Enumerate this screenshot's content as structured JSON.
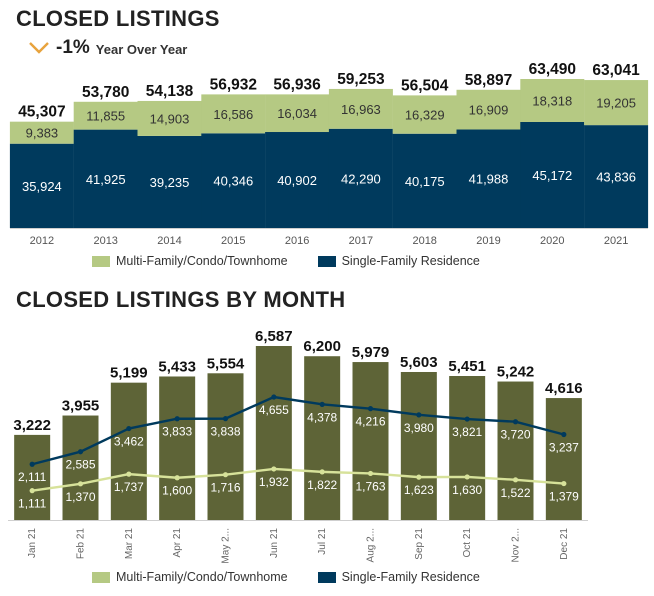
{
  "colors": {
    "multi": "#b5c983",
    "single": "#003a5d",
    "month_bar": "#5e6437",
    "arrow": "#e8a33d",
    "multi_line": "#d7e29a"
  },
  "header": {
    "title": "CLOSED LISTINGS",
    "yoy_icon": "chevron-down-icon",
    "yoy_value": "-1%",
    "yoy_label": "Year Over Year"
  },
  "monthly": {
    "title": "CLOSED LISTINGS BY MONTH"
  },
  "legend": {
    "multi": "Multi-Family/Condo/Townhome",
    "single": "Single-Family Residence"
  },
  "chart_data": [
    {
      "type": "bar",
      "stacked": true,
      "categories": [
        "2012",
        "2013",
        "2014",
        "2015",
        "2016",
        "2017",
        "2018",
        "2019",
        "2020",
        "2021"
      ],
      "series": [
        {
          "name": "Single-Family Residence",
          "values": [
            35924,
            41925,
            39235,
            40346,
            40902,
            42290,
            40175,
            41988,
            45172,
            43836
          ],
          "labels": [
            "35,924",
            "41,925",
            "39,235",
            "40,346",
            "40,902",
            "42,290",
            "40,175",
            "41,988",
            "45,172",
            "43,836"
          ]
        },
        {
          "name": "Multi-Family/Condo/Townhome",
          "values": [
            9383,
            11855,
            14903,
            16586,
            16034,
            16963,
            16329,
            16909,
            18318,
            19205
          ],
          "labels": [
            "9,383",
            "11,855",
            "14,903",
            "16,586",
            "16,034",
            "16,963",
            "16,329",
            "16,909",
            "18,318",
            "19,205"
          ]
        }
      ],
      "totals": [
        45307,
        53780,
        54138,
        56932,
        56936,
        59253,
        56504,
        58897,
        63490,
        63041
      ],
      "total_labels": [
        "45,307",
        "53,780",
        "54,138",
        "56,932",
        "56,936",
        "59,253",
        "56,504",
        "58,897",
        "63,490",
        "63,041"
      ],
      "legend": "bottom"
    },
    {
      "type": "bar",
      "categories": [
        "Jan 21",
        "Feb 21",
        "Mar 21",
        "Apr 21",
        "May 2...",
        "Jun 21",
        "Jul 21",
        "Aug 2...",
        "Sep 21",
        "Oct 21",
        "Nov 2...",
        "Dec 21"
      ],
      "values": [
        3222,
        3955,
        5199,
        5433,
        5554,
        6587,
        6200,
        5979,
        5603,
        5451,
        5242,
        4616
      ],
      "value_labels": [
        "3,222",
        "3,955",
        "5,199",
        "5,433",
        "5,554",
        "6,587",
        "6,200",
        "5,979",
        "5,603",
        "5,451",
        "5,242",
        "4,616"
      ],
      "lines": [
        {
          "name": "Single-Family Residence",
          "values": [
            2111,
            2585,
            3462,
            3833,
            3838,
            4655,
            4378,
            4216,
            3980,
            3821,
            3720,
            3237
          ],
          "labels": [
            "2,111",
            "2,585",
            "3,462",
            "3,833",
            "3,838",
            "4,655",
            "4,378",
            "4,216",
            "3,980",
            "3,821",
            "3,720",
            "3,237"
          ]
        },
        {
          "name": "Multi-Family/Condo/Townhome",
          "values": [
            1111,
            1370,
            1737,
            1600,
            1716,
            1932,
            1822,
            1763,
            1623,
            1630,
            1522,
            1379
          ],
          "labels": [
            "1,111",
            "1,370",
            "1,737",
            "1,600",
            "1,716",
            "1,932",
            "1,822",
            "1,763",
            "1,623",
            "1,630",
            "1,522",
            "1,379"
          ]
        }
      ],
      "legend": "bottom"
    }
  ]
}
